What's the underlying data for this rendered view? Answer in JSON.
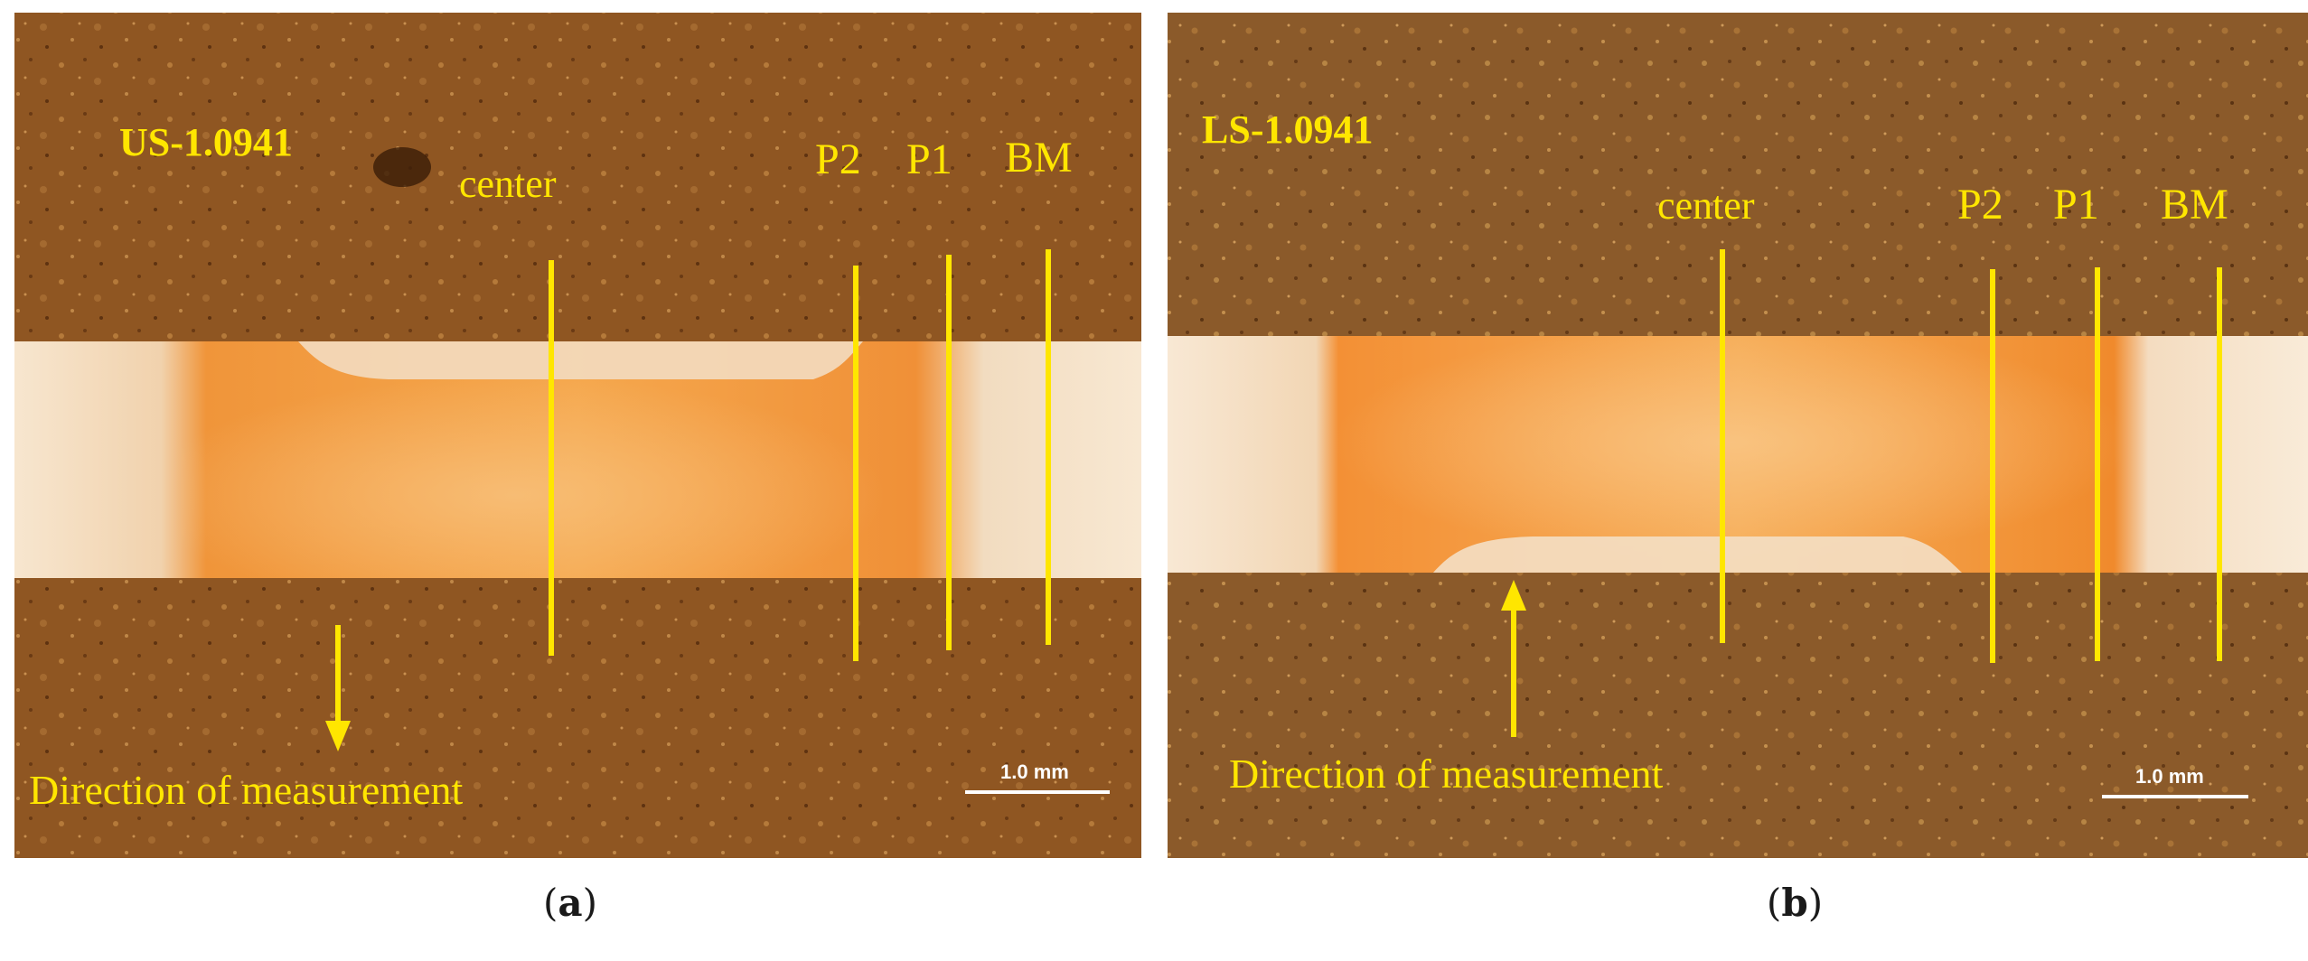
{
  "panels": [
    {
      "sample_label": "US-1.0941",
      "labels": {
        "center": "center",
        "p2": "P2",
        "p1": "P1",
        "bm": "BM"
      },
      "direction_text": "Direction of measurement",
      "arrow_direction": "down",
      "scale_bar": "1.0 mm",
      "caption_open": "(",
      "caption_letter": "a",
      "caption_close": ")"
    },
    {
      "sample_label": "LS-1.0941",
      "labels": {
        "center": "center",
        "p2": "P2",
        "p1": "P1",
        "bm": "BM"
      },
      "direction_text": "Direction of measurement",
      "arrow_direction": "up",
      "scale_bar": "1.0 mm",
      "caption_open": "(",
      "caption_letter": "b",
      "caption_close": ")"
    }
  ],
  "colors": {
    "annotation": "#ffe600",
    "background_brown": "#8a5020",
    "weld_orange": "#f2922e",
    "base_metal": "#f6e2c8",
    "scale_white": "#ffffff"
  }
}
